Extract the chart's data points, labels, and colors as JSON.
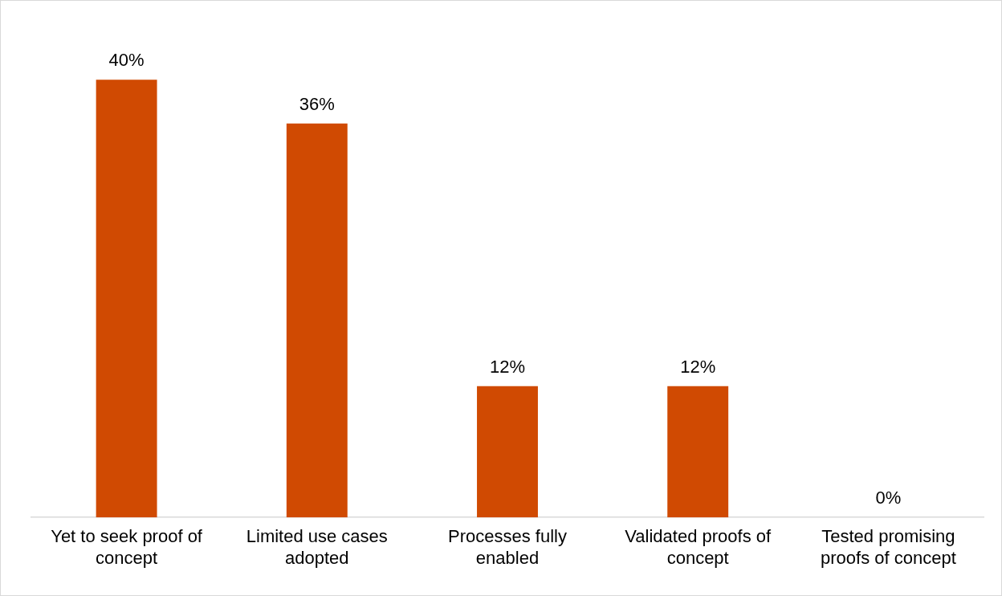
{
  "chart_data": {
    "type": "bar",
    "categories": [
      "Yet to seek proof of concept",
      "Limited use cases adopted",
      "Processes fully enabled",
      "Validated proofs of concept",
      "Tested promising proofs of concept"
    ],
    "values": [
      40,
      36,
      12,
      12,
      0
    ],
    "value_labels": [
      "40%",
      "36%",
      "12%",
      "12%",
      "0%"
    ],
    "color": "#d04a02",
    "tick_labels": "x",
    "grid": false,
    "legend": false
  }
}
